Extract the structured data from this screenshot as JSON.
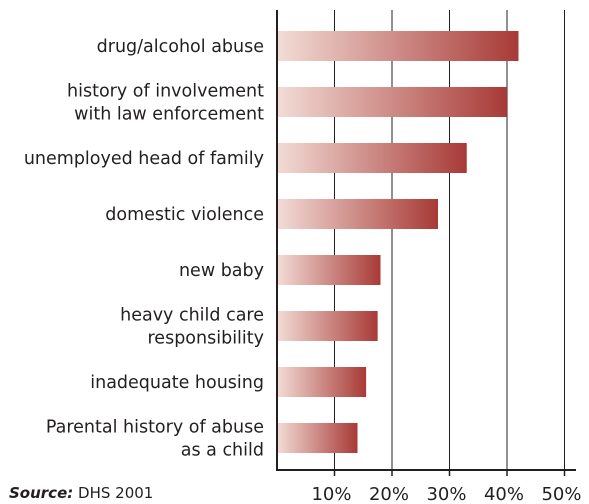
{
  "chart_data": {
    "type": "bar",
    "orientation": "horizontal",
    "categories": [
      "drug/alcohol abuse",
      "history of involvement with law enforcement",
      "unemployed head of family",
      "domestic violence",
      "new baby",
      "heavy child care responsibility",
      "inadequate housing",
      "Parental history of abuse as a child"
    ],
    "category_lines": [
      [
        "drug/alcohol abuse"
      ],
      [
        "history of involvement",
        "with law enforcement"
      ],
      [
        "unemployed head of family"
      ],
      [
        "domestic violence"
      ],
      [
        "new baby"
      ],
      [
        "heavy child care",
        "responsibility"
      ],
      [
        "inadequate housing"
      ],
      [
        "Parental history of abuse",
        "as a child"
      ]
    ],
    "values": [
      42,
      40,
      33,
      28,
      18,
      17.5,
      15.5,
      14
    ],
    "xlim": [
      0,
      52
    ],
    "xticks": [
      10,
      20,
      30,
      40,
      50
    ],
    "xtick_labels": [
      "10%",
      "20%",
      "30%",
      "40%",
      "50%"
    ],
    "grid": true,
    "bar_color_start": "#f3dcd6",
    "bar_color_end": "#a83a36"
  },
  "source": {
    "label": "Source:",
    "text": "DHS 2001"
  }
}
